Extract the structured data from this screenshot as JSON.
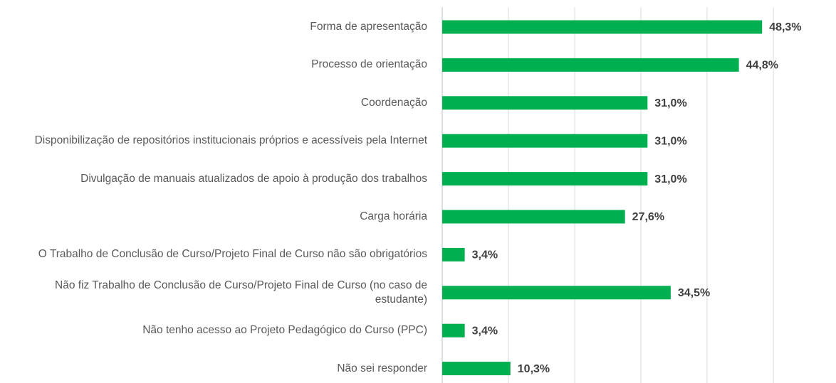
{
  "chart_data": {
    "type": "barh",
    "categories": [
      "Forma de apresentação",
      "Processo de orientação",
      "Coordenação",
      "Disponibilização de repositórios institucionais próprios e acessíveis pela Internet",
      "Divulgação de manuais atualizados de apoio à produção dos trabalhos",
      "Carga horária",
      "O Trabalho de Conclusão de Curso/Projeto Final de Curso não são obrigatórios",
      "Não fiz Trabalho de Conclusão de Curso/Projeto Final de Curso (no caso de estudante)",
      "Não tenho acesso ao Projeto Pedagógico do Curso (PPC)",
      "Não sei responder"
    ],
    "values": [
      48.3,
      44.8,
      31.0,
      31.0,
      31.0,
      27.6,
      3.4,
      34.5,
      3.4,
      10.3
    ],
    "value_labels": [
      "48,3%",
      "44,8%",
      "31,0%",
      "31,0%",
      "31,0%",
      "27,6%",
      "3,4%",
      "34,5%",
      "3,4%",
      "10,3%"
    ],
    "color": "#00b050",
    "xlim": [
      0,
      50
    ],
    "xticks": [
      0,
      10,
      20,
      30,
      40,
      50
    ],
    "grid": true
  }
}
